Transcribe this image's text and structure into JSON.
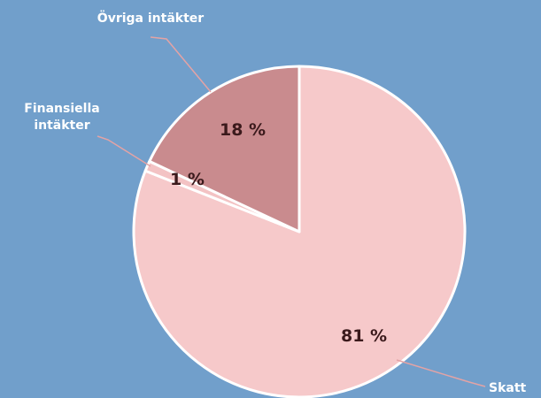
{
  "chart_data": {
    "type": "pie",
    "categories": [
      "Skatt",
      "Finansiella intäkter",
      "Övriga intäkter"
    ],
    "values": [
      81,
      1,
      18
    ],
    "value_labels": [
      "81 %",
      "1 %",
      "18 %"
    ],
    "colors": [
      "#f6c9ca",
      "#f3c3c4",
      "#c98b8e"
    ]
  }
}
